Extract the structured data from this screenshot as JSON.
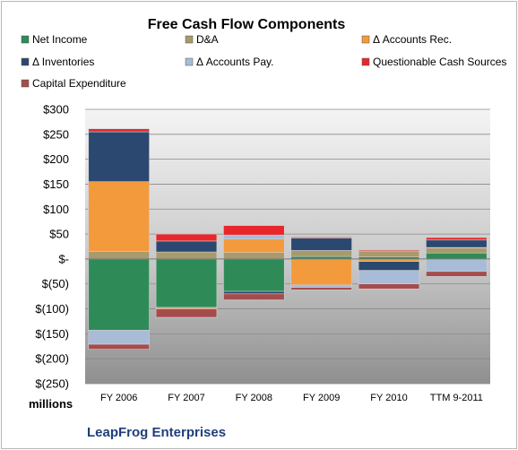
{
  "chart_data": {
    "type": "bar",
    "stacked": true,
    "title": "Free Cash Flow Components",
    "ylabel": "millions",
    "footer": "LeapFrog Enterprises",
    "categories": [
      "FY 2006",
      "FY 2007",
      "FY 2008",
      "FY 2009",
      "FY 2010",
      "TTM 9-2011"
    ],
    "ylim": [
      -250,
      300
    ],
    "yticks": [
      300,
      250,
      200,
      150,
      100,
      50,
      0,
      -50,
      -100,
      -150,
      -200,
      -250
    ],
    "ytick_labels": [
      "$300",
      "$250",
      "$200",
      "$150",
      "$100",
      "$50",
      "$-",
      "$(50)",
      "$(100)",
      "$(150)",
      "$(200)",
      "$(250)"
    ],
    "grid": true,
    "legend_position": "top",
    "series": [
      {
        "name": "Net Income",
        "color": "#2e8b57",
        "values": [
          -143,
          -97,
          -65,
          5,
          4,
          12
        ]
      },
      {
        "name": "D&A",
        "color": "#a89a6a",
        "values": [
          15,
          14,
          13,
          12,
          12,
          10
        ]
      },
      {
        "name": "Δ Accounts Rec.",
        "color": "#f39a3c",
        "values": [
          140,
          -3,
          27,
          -52,
          -5,
          1
        ]
      },
      {
        "name": "Δ Inventories",
        "color": "#2b4870",
        "values": [
          100,
          22,
          -5,
          25,
          -18,
          15
        ]
      },
      {
        "name": "Δ Accounts Pay.",
        "color": "#a8bcd8",
        "values": [
          -28,
          0,
          8,
          -5,
          -27,
          -25
        ]
      },
      {
        "name": "Questionable Cash Sources",
        "color": "#e8262b",
        "values": [
          6,
          14,
          19,
          2,
          2,
          5
        ]
      },
      {
        "name": "Capital Expenditure",
        "color": "#a54c4c",
        "values": [
          -10,
          -17,
          -12,
          -5,
          -10,
          -10
        ]
      }
    ]
  }
}
